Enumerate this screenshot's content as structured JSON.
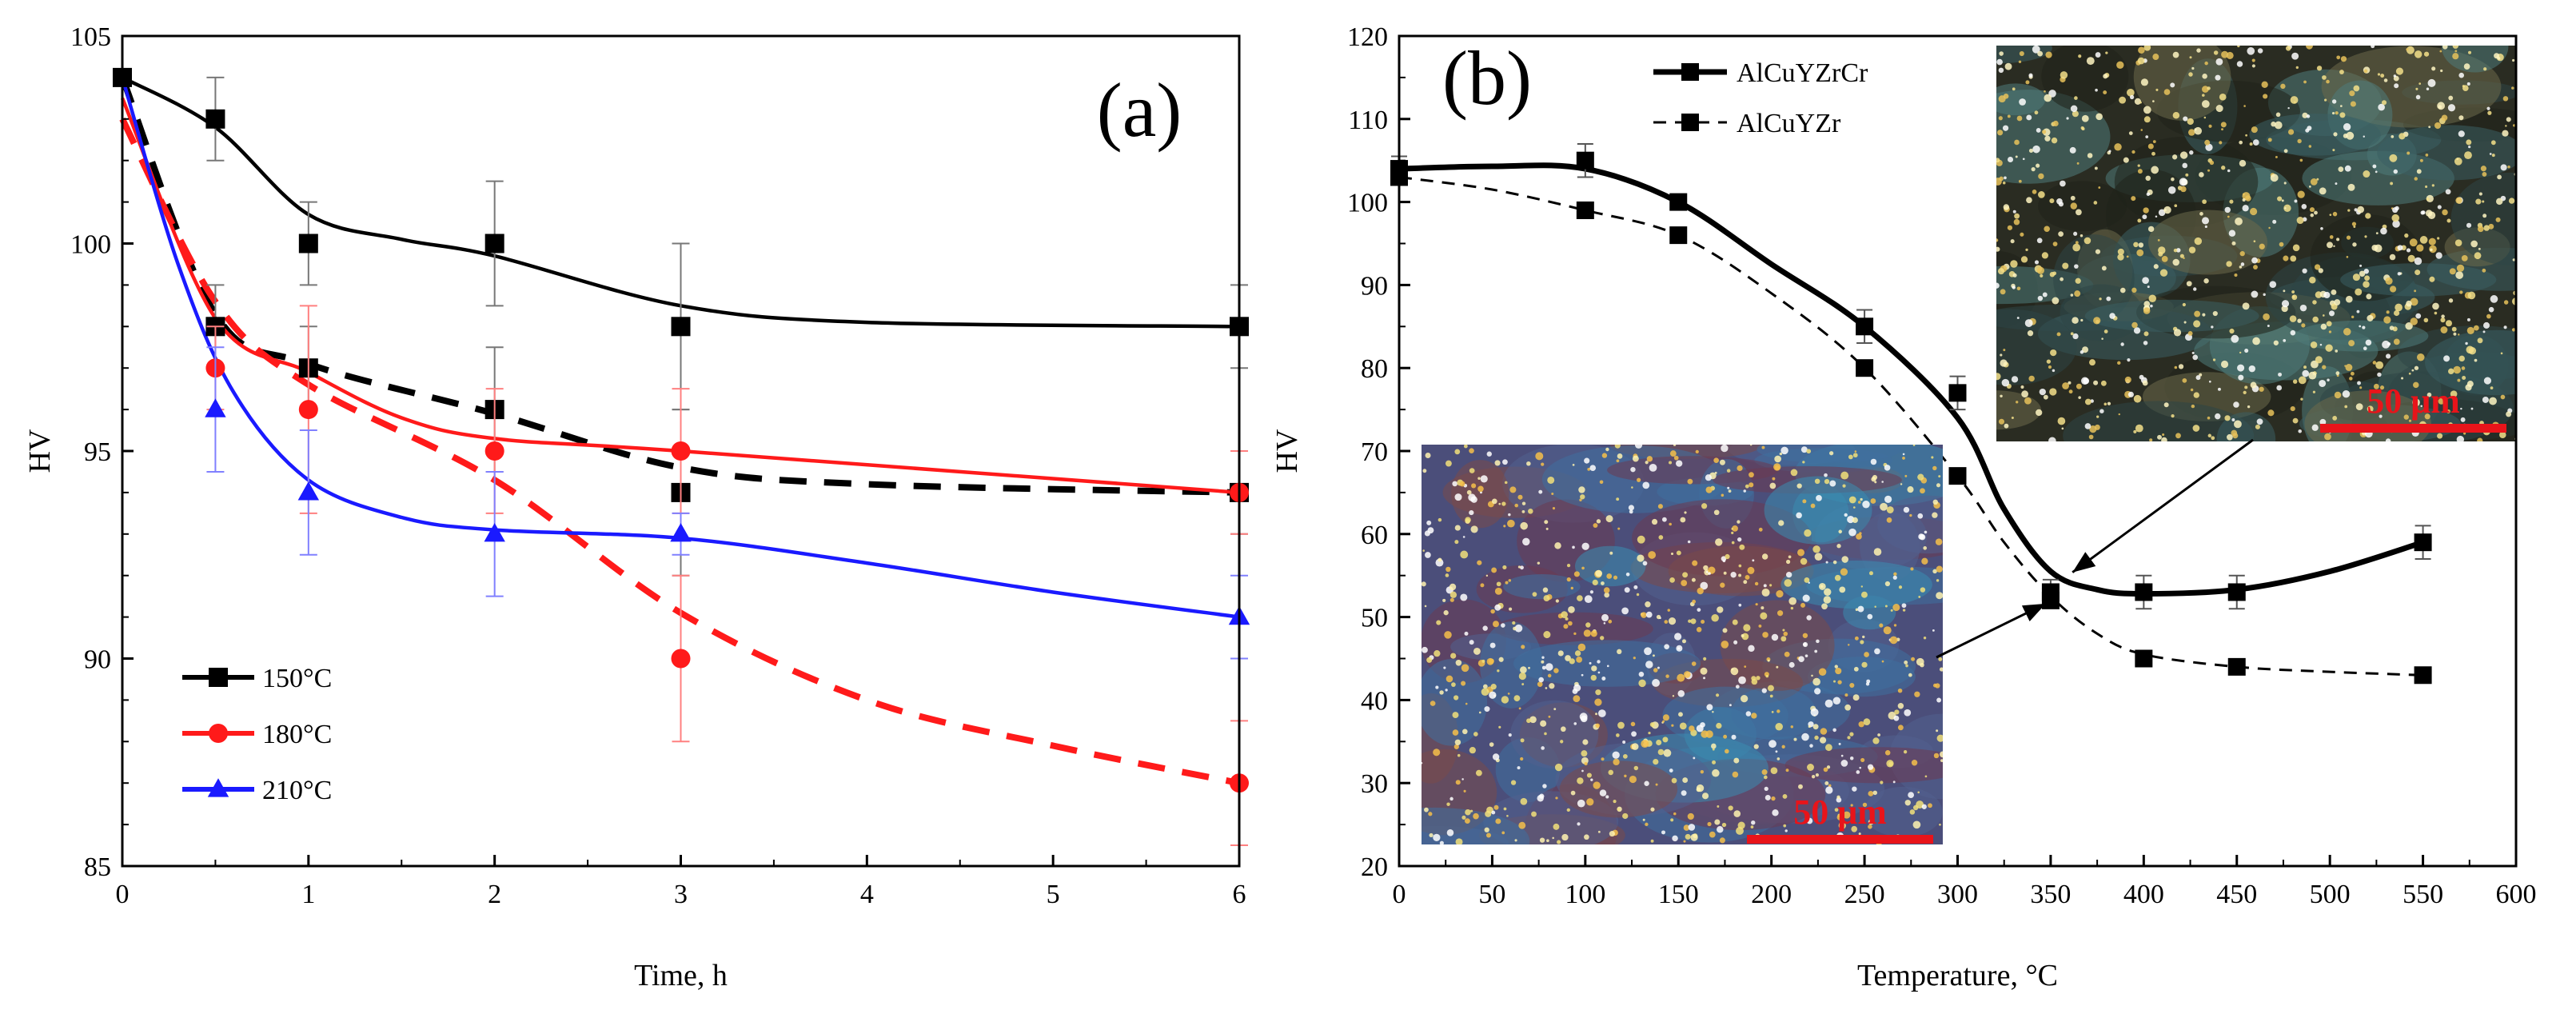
{
  "chart_data": [
    {
      "type": "line",
      "panel_label": "(a)",
      "xlabel": "Time, h",
      "ylabel": "HV",
      "xlim": [
        0,
        6
      ],
      "ylim": [
        85,
        105
      ],
      "x_ticks": [
        0,
        1,
        2,
        3,
        4,
        5,
        6
      ],
      "y_ticks": [
        85,
        90,
        95,
        100,
        105
      ],
      "legend_position": "lower-left",
      "series": [
        {
          "name": "150°C",
          "color": "#000000",
          "marker": "square",
          "points": [
            {
              "x": 0,
              "y": 104
            },
            {
              "x": 0.5,
              "y": 103,
              "err": 1
            },
            {
              "x": 1,
              "y": 100,
              "err": 1
            },
            {
              "x": 2,
              "y": 100,
              "err": 1.5
            },
            {
              "x": 3,
              "y": 98,
              "err": 2
            },
            {
              "x": 6,
              "y": 98,
              "err": 1
            }
          ],
          "fit": [
            {
              "x": 0,
              "y": 104
            },
            {
              "x": 0.5,
              "y": 102.8
            },
            {
              "x": 1,
              "y": 100.7
            },
            {
              "x": 1.5,
              "y": 100.1
            },
            {
              "x": 2,
              "y": 99.7
            },
            {
              "x": 3,
              "y": 98.5
            },
            {
              "x": 4,
              "y": 98.1
            },
            {
              "x": 6,
              "y": 98
            }
          ]
        },
        {
          "name": "150°C dashed",
          "color": "#000000",
          "marker": "square",
          "points": [
            {
              "x": 0.5,
              "y": 98,
              "err": 1
            },
            {
              "x": 1,
              "y": 97,
              "err": 1
            },
            {
              "x": 2,
              "y": 96,
              "err": 1.5
            },
            {
              "x": 3,
              "y": 94,
              "err": 2
            },
            {
              "x": 6,
              "y": 94,
              "err": 1
            }
          ],
          "fit": [
            {
              "x": 0,
              "y": 104
            },
            {
              "x": 0.5,
              "y": 98.3
            },
            {
              "x": 1,
              "y": 97.1
            },
            {
              "x": 2,
              "y": 95.9
            },
            {
              "x": 3,
              "y": 94.6
            },
            {
              "x": 4,
              "y": 94.2
            },
            {
              "x": 6,
              "y": 94
            }
          ]
        },
        {
          "name": "180°C",
          "color": "#ff1a1a",
          "marker": "circle",
          "points": [
            {
              "x": 0.5,
              "y": 97,
              "err": 1
            },
            {
              "x": 1,
              "y": 96,
              "err": 2.5
            },
            {
              "x": 2,
              "y": 95,
              "err": 1.5
            },
            {
              "x": 3,
              "y": 95,
              "err": 1.5
            },
            {
              "x": 6,
              "y": 94,
              "err": 1
            }
          ],
          "fit": [
            {
              "x": 0,
              "y": 103.5
            },
            {
              "x": 0.5,
              "y": 98.2
            },
            {
              "x": 1,
              "y": 96.9
            },
            {
              "x": 1.5,
              "y": 95.8
            },
            {
              "x": 2,
              "y": 95.3
            },
            {
              "x": 3,
              "y": 95
            },
            {
              "x": 6,
              "y": 94
            }
          ]
        },
        {
          "name": "180°C dashed",
          "color": "#ff1a1a",
          "marker": "circle",
          "points": [
            {
              "x": 3,
              "y": 90,
              "err": 2
            },
            {
              "x": 6,
              "y": 87,
              "err": 1.5
            }
          ],
          "fit": [
            {
              "x": 0,
              "y": 103
            },
            {
              "x": 0.5,
              "y": 98.6
            },
            {
              "x": 1,
              "y": 96.6
            },
            {
              "x": 2,
              "y": 94.3
            },
            {
              "x": 3,
              "y": 91.1
            },
            {
              "x": 4,
              "y": 89
            },
            {
              "x": 5,
              "y": 87.9
            },
            {
              "x": 6,
              "y": 87
            }
          ]
        },
        {
          "name": "210°C",
          "color": "#1a1aff",
          "marker": "triangle",
          "points": [
            {
              "x": 0.5,
              "y": 96,
              "err": 1.5
            },
            {
              "x": 1,
              "y": 94,
              "err": 1.5
            },
            {
              "x": 2,
              "y": 93,
              "err": 1.5
            },
            {
              "x": 3,
              "y": 93,
              "err": 0.5
            },
            {
              "x": 6,
              "y": 91,
              "err": 1
            }
          ],
          "fit": [
            {
              "x": 0,
              "y": 104
            },
            {
              "x": 0.3,
              "y": 99.5
            },
            {
              "x": 0.6,
              "y": 96.4
            },
            {
              "x": 1,
              "y": 94.3
            },
            {
              "x": 1.5,
              "y": 93.4
            },
            {
              "x": 2,
              "y": 93.1
            },
            {
              "x": 3,
              "y": 92.9
            },
            {
              "x": 4,
              "y": 92.3
            },
            {
              "x": 5,
              "y": 91.6
            },
            {
              "x": 6,
              "y": 91
            }
          ]
        }
      ],
      "legend": [
        {
          "label": "150°C",
          "color": "#000000",
          "marker": "square"
        },
        {
          "label": "180°C",
          "color": "#ff1a1a",
          "marker": "circle"
        },
        {
          "label": "210°C",
          "color": "#1a1aff",
          "marker": "triangle"
        }
      ]
    },
    {
      "type": "line",
      "panel_label": "(b)",
      "xlabel": "Temperature, °C",
      "ylabel": "HV",
      "xlim": [
        0,
        600
      ],
      "ylim": [
        20,
        120
      ],
      "x_ticks": [
        0,
        50,
        100,
        150,
        200,
        250,
        300,
        350,
        400,
        450,
        500,
        550,
        600
      ],
      "y_ticks": [
        20,
        30,
        40,
        50,
        60,
        70,
        80,
        90,
        100,
        110,
        120
      ],
      "legend_position": "top-left",
      "series": [
        {
          "name": "AlCuYZrCr",
          "color": "#000000",
          "marker": "square",
          "style": "solid",
          "points": [
            {
              "x": 0,
              "y": 104,
              "err": 1.5
            },
            {
              "x": 100,
              "y": 105,
              "err": 2
            },
            {
              "x": 150,
              "y": 100
            },
            {
              "x": 250,
              "y": 85,
              "err": 2
            },
            {
              "x": 300,
              "y": 77,
              "err": 2
            },
            {
              "x": 350,
              "y": 53,
              "err": 1.5
            },
            {
              "x": 400,
              "y": 53,
              "err": 2
            },
            {
              "x": 450,
              "y": 53,
              "err": 2
            },
            {
              "x": 550,
              "y": 59,
              "err": 2
            }
          ],
          "fit": [
            {
              "x": 0,
              "y": 104
            },
            {
              "x": 50,
              "y": 104.3
            },
            {
              "x": 100,
              "y": 104
            },
            {
              "x": 150,
              "y": 100
            },
            {
              "x": 200,
              "y": 92.5
            },
            {
              "x": 250,
              "y": 85
            },
            {
              "x": 300,
              "y": 74
            },
            {
              "x": 325,
              "y": 63
            },
            {
              "x": 350,
              "y": 55.5
            },
            {
              "x": 375,
              "y": 53.3
            },
            {
              "x": 400,
              "y": 52.8
            },
            {
              "x": 450,
              "y": 53.3
            },
            {
              "x": 500,
              "y": 55.5
            },
            {
              "x": 550,
              "y": 59
            }
          ]
        },
        {
          "name": "AlCuYZr",
          "color": "#000000",
          "marker": "square",
          "style": "dashed",
          "points": [
            {
              "x": 0,
              "y": 103
            },
            {
              "x": 100,
              "y": 99
            },
            {
              "x": 150,
              "y": 96
            },
            {
              "x": 250,
              "y": 80
            },
            {
              "x": 300,
              "y": 67
            },
            {
              "x": 350,
              "y": 52
            },
            {
              "x": 400,
              "y": 45
            },
            {
              "x": 450,
              "y": 44
            },
            {
              "x": 550,
              "y": 43
            }
          ],
          "fit": [
            {
              "x": 0,
              "y": 103
            },
            {
              "x": 50,
              "y": 101.5
            },
            {
              "x": 100,
              "y": 99
            },
            {
              "x": 150,
              "y": 96
            },
            {
              "x": 200,
              "y": 89
            },
            {
              "x": 250,
              "y": 80
            },
            {
              "x": 300,
              "y": 67
            },
            {
              "x": 325,
              "y": 59
            },
            {
              "x": 350,
              "y": 52.5
            },
            {
              "x": 375,
              "y": 48
            },
            {
              "x": 400,
              "y": 45.5
            },
            {
              "x": 450,
              "y": 44
            },
            {
              "x": 500,
              "y": 43.4
            },
            {
              "x": 550,
              "y": 43
            }
          ]
        }
      ],
      "legend": [
        {
          "label": "AlCuYZrCr",
          "style": "solid"
        },
        {
          "label": "AlCuYZr",
          "style": "dashed"
        }
      ],
      "insets": [
        {
          "scale_label": "50 μm",
          "palette": "teal-dark",
          "points_to": {
            "x": 360,
            "y": 55
          }
        },
        {
          "scale_label": "50 μm",
          "palette": "blue-purple",
          "points_to": {
            "x": 350,
            "y": 52
          }
        }
      ]
    }
  ]
}
